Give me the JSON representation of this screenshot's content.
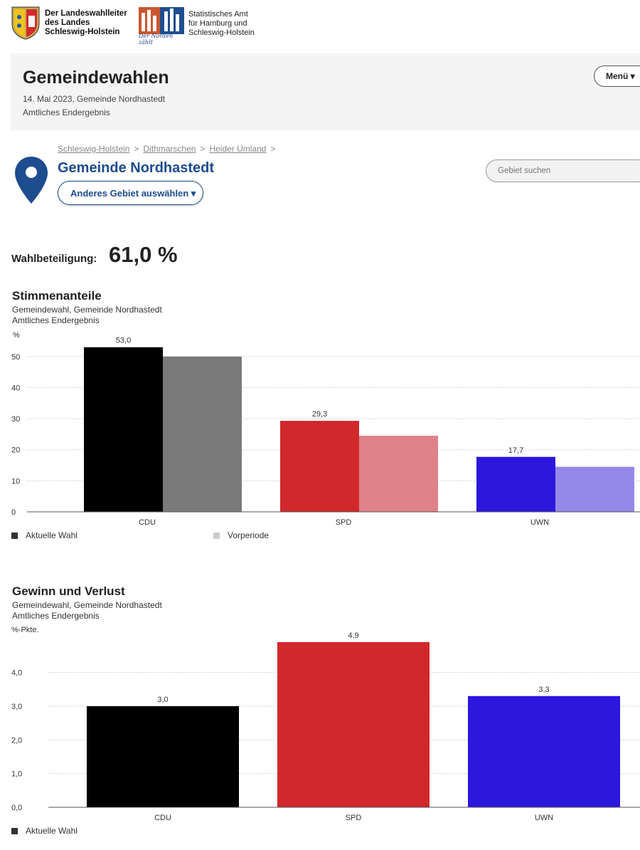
{
  "header": {
    "logo1_lines": [
      "Der Landeswahlleiter",
      "des Landes",
      "Schleswig-Holstein"
    ],
    "logo2_lines": [
      "Statistisches Amt",
      "für Hamburg und",
      "Schleswig-Holstein"
    ],
    "logo2_tagline": "Der Norden zählt"
  },
  "band": {
    "title": "Gemeindewahlen",
    "date_line": "14. Mai 2023, Gemeinde Nordhastedt",
    "status_line": "Amtliches Endergebnis",
    "menu_label": "Menü ▾"
  },
  "breadcrumb": [
    "Schleswig-Holstein",
    "Dithmarschen",
    "Heider Umland"
  ],
  "breadcrumb_sep": ">",
  "region": {
    "title": "Gemeinde Nordhastedt",
    "select_label": "Anderes Gebiet auswählen ▾"
  },
  "search": {
    "placeholder": "Gebiet suchen"
  },
  "turnout": {
    "label": "Wahlbeteiligung:",
    "value": "61,0 %"
  },
  "icons": {
    "location": "map-pin-icon",
    "legend_current": "square-icon",
    "legend_previous": "square-icon"
  },
  "colors": {
    "accent": "#1d4c8f",
    "CDU": "#000000",
    "CDU_prev": "#7a7a7a",
    "SPD": "#d0282b",
    "SPD_prev": "#e0828a",
    "UWN": "#2c17dc",
    "UWN_prev": "#9588e9",
    "legend_current": "#333333",
    "legend_previous": "#cccccc"
  },
  "chart_data": [
    {
      "type": "bar",
      "title": "Stimmenanteile",
      "subtitle": [
        "Gemeindewahl, Gemeinde Nordhastedt",
        "Amtliches Endergebnis"
      ],
      "unit": "%",
      "categories": [
        "CDU",
        "SPD",
        "UWN"
      ],
      "series": [
        {
          "name": "Aktuelle Wahl",
          "values": [
            53.0,
            29.3,
            17.7
          ],
          "labels": [
            "53,0",
            "29,3",
            "17,7"
          ]
        },
        {
          "name": "Vorperiode",
          "values": [
            50.0,
            24.5,
            14.5
          ]
        }
      ],
      "yticks": [
        "0",
        "10",
        "20",
        "30",
        "40",
        "50"
      ],
      "ylim": [
        0,
        55
      ],
      "grid": true,
      "legend": "bottom-left"
    },
    {
      "type": "bar",
      "title": "Gewinn und Verlust",
      "subtitle": [
        "Gemeindewahl, Gemeinde Nordhastedt",
        "Amtliches Endergebnis"
      ],
      "unit": "%-Pkte.",
      "categories": [
        "CDU",
        "SPD",
        "UWN"
      ],
      "series": [
        {
          "name": "Aktuelle Wahl",
          "values": [
            3.0,
            4.9,
            3.3
          ],
          "labels": [
            "3,0",
            "4,9",
            "3,3"
          ]
        }
      ],
      "yticks": [
        "0,0",
        "1,0",
        "2,0",
        "3,0",
        "4,0"
      ],
      "ylim": [
        0,
        4.9
      ],
      "grid": true,
      "legend": "bottom-left"
    }
  ]
}
